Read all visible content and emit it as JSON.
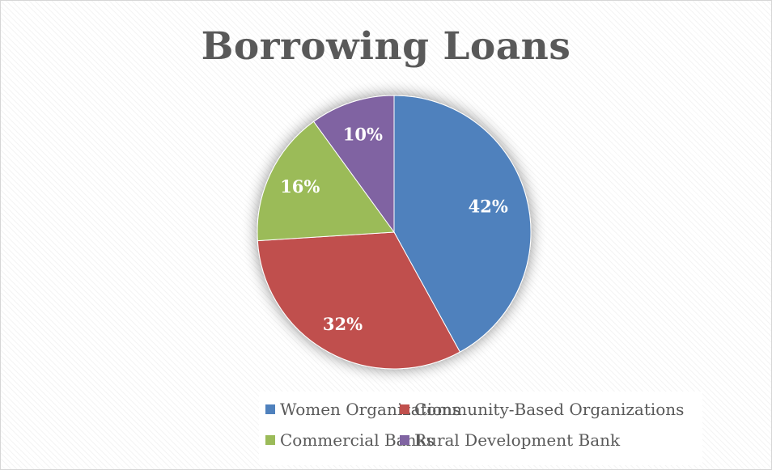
{
  "chart_data": {
    "type": "pie",
    "title": "Borrowing Loans",
    "slices": [
      {
        "name": "Women Organizations",
        "value": 42,
        "label": "42%",
        "color": "#4f81bd"
      },
      {
        "name": "Community-Based Organizations",
        "value": 32,
        "label": "32%",
        "color": "#c0504d"
      },
      {
        "name": "Commercial Banks",
        "value": 16,
        "label": "16%",
        "color": "#9bbb59"
      },
      {
        "name": "Rural Development Bank",
        "value": 10,
        "label": "10%",
        "color": "#8064a2"
      }
    ],
    "legend_position": "bottom"
  }
}
